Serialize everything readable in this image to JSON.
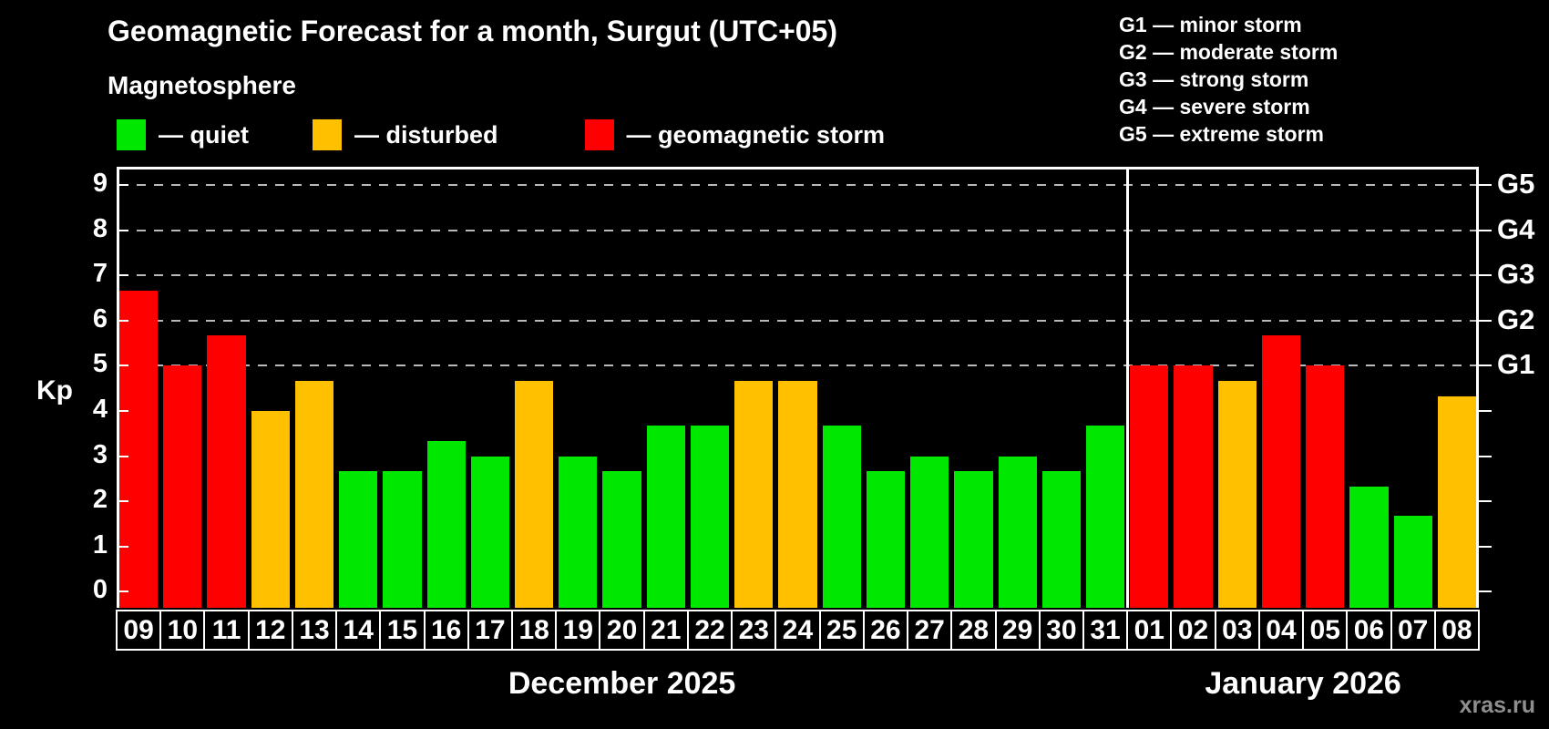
{
  "title": "Geomagnetic Forecast for a month, Surgut (UTC+05)",
  "subtitle": "Magnetosphere",
  "legend_items": [
    {
      "status": "quiet",
      "label": "— quiet"
    },
    {
      "status": "disturbed",
      "label": "— disturbed"
    },
    {
      "status": "storm",
      "label": "— geomagnetic storm"
    }
  ],
  "g_scale_legend": [
    "G1 — minor storm",
    "G2 — moderate storm",
    "G3 — strong storm",
    "G4 — severe storm",
    "G5 — extreme storm"
  ],
  "colors": {
    "quiet": "#00e800",
    "disturbed": "#ffc000",
    "storm": "#ff0000",
    "axis": "#ffffff",
    "grid": "#b9b9b9",
    "background": "#000000",
    "watermark": "#8f8f8f"
  },
  "y_axis": {
    "label": "Kp",
    "ticks": [
      0,
      1,
      2,
      3,
      4,
      5,
      6,
      7,
      8,
      9
    ]
  },
  "right_axis": {
    "labels": [
      {
        "text": "G1",
        "kp": 5
      },
      {
        "text": "G2",
        "kp": 6
      },
      {
        "text": "G3",
        "kp": 7
      },
      {
        "text": "G4",
        "kp": 8
      },
      {
        "text": "G5",
        "kp": 9
      }
    ]
  },
  "watermark": "xras.ru",
  "chart_data": {
    "type": "bar",
    "title": "Geomagnetic Forecast for a month, Surgut (UTC+05)",
    "ylabel": "Kp",
    "ylim": [
      0,
      9
    ],
    "plot_range": [
      -0.36,
      9.41
    ],
    "grid_levels": [
      5,
      6,
      7,
      8,
      9
    ],
    "legend_position": "top-left",
    "months": [
      {
        "label": "December 2025",
        "days": [
          {
            "day": "09",
            "kp": 6.67,
            "status": "storm"
          },
          {
            "day": "10",
            "kp": 5.0,
            "status": "storm"
          },
          {
            "day": "11",
            "kp": 5.67,
            "status": "storm"
          },
          {
            "day": "12",
            "kp": 4.0,
            "status": "disturbed"
          },
          {
            "day": "13",
            "kp": 4.67,
            "status": "disturbed"
          },
          {
            "day": "14",
            "kp": 2.67,
            "status": "quiet"
          },
          {
            "day": "15",
            "kp": 2.67,
            "status": "quiet"
          },
          {
            "day": "16",
            "kp": 3.33,
            "status": "quiet"
          },
          {
            "day": "17",
            "kp": 3.0,
            "status": "quiet"
          },
          {
            "day": "18",
            "kp": 4.67,
            "status": "disturbed"
          },
          {
            "day": "19",
            "kp": 3.0,
            "status": "quiet"
          },
          {
            "day": "20",
            "kp": 2.67,
            "status": "quiet"
          },
          {
            "day": "21",
            "kp": 3.67,
            "status": "quiet"
          },
          {
            "day": "22",
            "kp": 3.67,
            "status": "quiet"
          },
          {
            "day": "23",
            "kp": 4.67,
            "status": "disturbed"
          },
          {
            "day": "24",
            "kp": 4.67,
            "status": "disturbed"
          },
          {
            "day": "25",
            "kp": 3.67,
            "status": "quiet"
          },
          {
            "day": "26",
            "kp": 2.67,
            "status": "quiet"
          },
          {
            "day": "27",
            "kp": 3.0,
            "status": "quiet"
          },
          {
            "day": "28",
            "kp": 2.67,
            "status": "quiet"
          },
          {
            "day": "29",
            "kp": 3.0,
            "status": "quiet"
          },
          {
            "day": "30",
            "kp": 2.67,
            "status": "quiet"
          },
          {
            "day": "31",
            "kp": 3.67,
            "status": "quiet"
          }
        ]
      },
      {
        "label": "January 2026",
        "days": [
          {
            "day": "01",
            "kp": 5.0,
            "status": "storm"
          },
          {
            "day": "02",
            "kp": 5.0,
            "status": "storm"
          },
          {
            "day": "03",
            "kp": 4.67,
            "status": "disturbed"
          },
          {
            "day": "04",
            "kp": 5.67,
            "status": "storm"
          },
          {
            "day": "05",
            "kp": 5.0,
            "status": "storm"
          },
          {
            "day": "06",
            "kp": 2.33,
            "status": "quiet"
          },
          {
            "day": "07",
            "kp": 1.67,
            "status": "quiet"
          },
          {
            "day": "08",
            "kp": 4.33,
            "status": "disturbed"
          }
        ]
      }
    ]
  }
}
